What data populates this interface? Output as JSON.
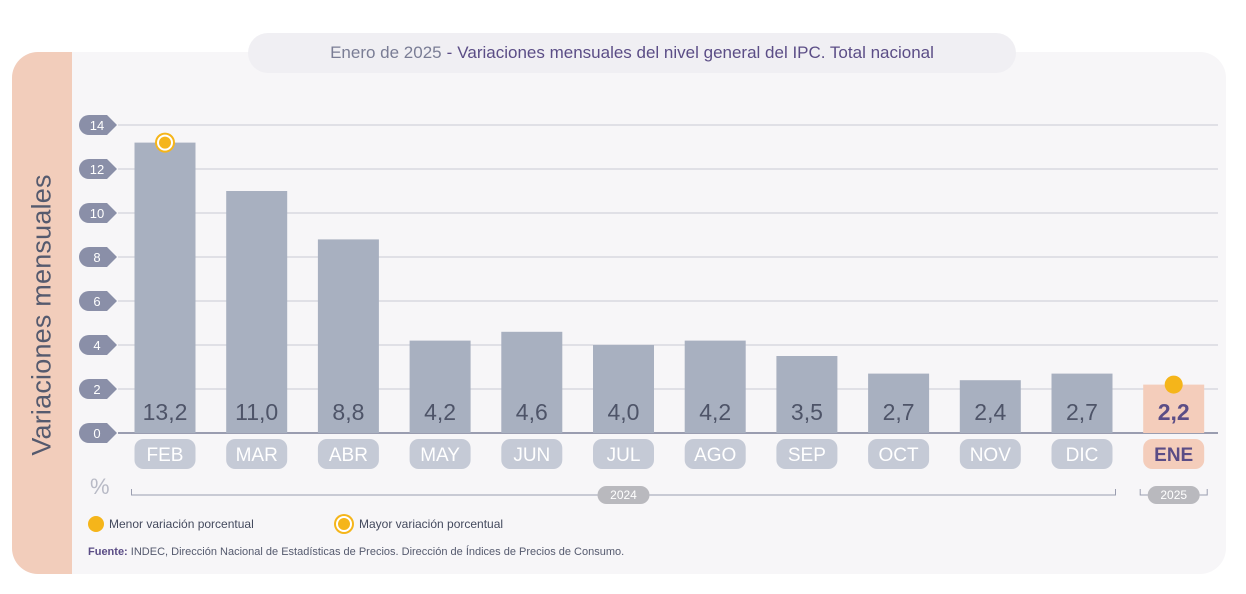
{
  "title": {
    "prefix": "Enero de 2025",
    "separator": "-",
    "main": "Variaciones mensuales del nivel general del IPC. Total nacional"
  },
  "side_label": "Variaciones mensuales",
  "unit": "%",
  "legend": {
    "min": "Menor variación porcentual",
    "max": "Mayor variación porcentual"
  },
  "source": {
    "label": "Fuente:",
    "text": "INDEC, Dirección Nacional de Estadísticas de Precios. Dirección de Índices de Precios de Consumo."
  },
  "colors": {
    "bar": "#a8b0c0",
    "highlight_bar": "#f4cdbb",
    "highlight_label": "#5b4d86",
    "marker": "#f5b51a",
    "tick_badge": "#8a8fa8",
    "year_badge": "#b9b9be"
  },
  "chart_data": {
    "type": "bar",
    "categories": [
      "FEB",
      "MAR",
      "ABR",
      "MAY",
      "JUN",
      "JUL",
      "AGO",
      "SEP",
      "OCT",
      "NOV",
      "DIC",
      "ENE"
    ],
    "values": [
      13.2,
      11.0,
      8.8,
      4.2,
      4.6,
      4.0,
      4.2,
      3.5,
      2.7,
      2.4,
      2.7,
      2.2
    ],
    "value_labels": [
      "13,2",
      "11,0",
      "8,8",
      "4,2",
      "4,6",
      "4,0",
      "4,2",
      "3,5",
      "2,7",
      "2,4",
      "2,7",
      "2,2"
    ],
    "highlight_index": 11,
    "max_marker_index": 0,
    "min_marker_index": 11,
    "yticks": [
      "0",
      "2",
      "4",
      "6",
      "8",
      "10",
      "12",
      "14"
    ],
    "ylim": [
      0,
      14
    ],
    "ylabel": "Variaciones mensuales",
    "year_groups": [
      {
        "label": "2024",
        "start": 0,
        "end": 10
      },
      {
        "label": "2025",
        "start": 11,
        "end": 11
      }
    ],
    "grid": true
  }
}
